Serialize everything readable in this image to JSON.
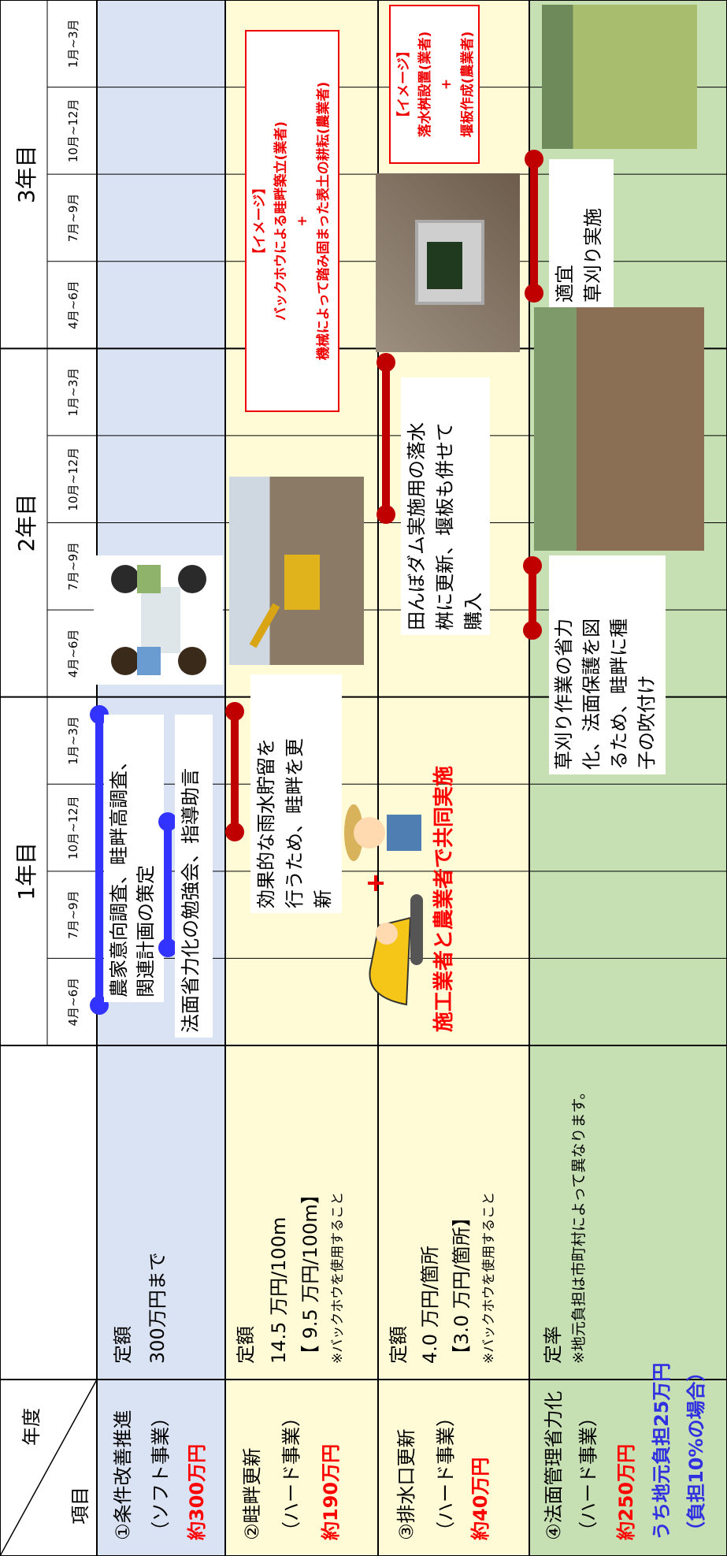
{
  "header": {
    "year_label": "年度",
    "item_label": "項目",
    "years": [
      "1年目",
      "2年目",
      "3年目"
    ],
    "months": [
      "4月~6月",
      "7月~9月",
      "10月~12月",
      "1月~3月",
      "4月~6月",
      "7月~9月",
      "10月~12月",
      "1月~3月",
      "4月~6月",
      "7月~9月",
      "10月~12月",
      "1月~3月"
    ]
  },
  "rows": [
    {
      "item": [
        "①条件改善推進",
        "（ソフト事業）"
      ],
      "cost": "約300万円",
      "rate": [
        "定額",
        "300万円まで"
      ]
    },
    {
      "item": [
        "②畦畔更新",
        "（ハード事業）"
      ],
      "cost": "約190万円",
      "rate": [
        "定額",
        "14.5 万円/100m",
        "【 9.5 万円/100m】"
      ],
      "note": "※バックホウを使用すること"
    },
    {
      "item": [
        "③排水口更新",
        "（ハード事業）"
      ],
      "cost": "約40万円",
      "rate": [
        "定額",
        "4.0 万円/箇所",
        "【3.0 万円/箇所】"
      ],
      "note": "※バックホウを使用すること"
    },
    {
      "item": [
        "④法面管理省力化",
        "（ハード事業）"
      ],
      "cost": "約250万円",
      "local": [
        "うち地元負担25万円",
        "（負担10%の場合）"
      ],
      "rate": [
        "定率"
      ],
      "note": "※地元負担は市町村によって異なります。"
    }
  ],
  "tasks": {
    "survey": [
      "農家意向調査、畦畔高調査、",
      "関連計画の策定"
    ],
    "study": [
      "法面省力化の勉強会、指導助言"
    ],
    "levee": [
      "効果的な雨水貯留を",
      "行うため、畦畔を更",
      "新"
    ],
    "joint": "施工業者と農業者で共同実施",
    "drain": [
      "田んぼダム実施用の落水",
      "桝に更新、堰板も併せて",
      "購入"
    ],
    "seed": [
      "草刈り作業の省力",
      "化、法面保護を図",
      "るため、畦畔に種",
      "子の吹付け"
    ],
    "mow": [
      "適宜",
      "草刈り実施"
    ]
  },
  "images": {
    "levee": [
      "【イメージ】",
      "バックホウによる畦畔築立(業者)",
      "+",
      "機械によって踏み固まった表土の耕耘(農業者)"
    ],
    "drain": [
      "【イメージ】",
      "落水桝設置(業者)",
      "+",
      "堰板作成(農業者)"
    ]
  }
}
